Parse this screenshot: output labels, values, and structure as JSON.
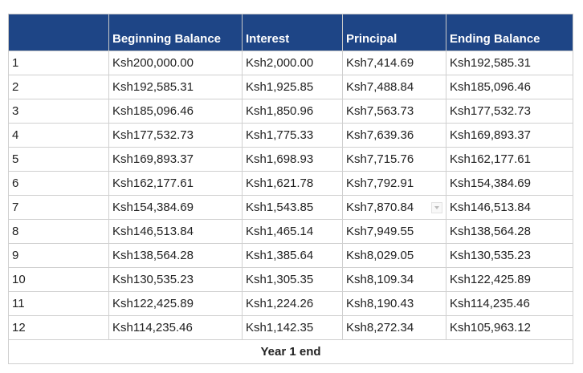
{
  "headers": [
    "",
    "Beginning Balance",
    "Interest",
    "Principal",
    "Ending Balance"
  ],
  "rows": [
    [
      "1",
      "Ksh200,000.00",
      "Ksh2,000.00",
      "Ksh7,414.69",
      "Ksh192,585.31"
    ],
    [
      "2",
      "Ksh192,585.31",
      "Ksh1,925.85",
      "Ksh7,488.84",
      "Ksh185,096.46"
    ],
    [
      "3",
      "Ksh185,096.46",
      "Ksh1,850.96",
      "Ksh7,563.73",
      "Ksh177,532.73"
    ],
    [
      "4",
      "Ksh177,532.73",
      "Ksh1,775.33",
      "Ksh7,639.36",
      "Ksh169,893.37"
    ],
    [
      "5",
      "Ksh169,893.37",
      "Ksh1,698.93",
      "Ksh7,715.76",
      "Ksh162,177.61"
    ],
    [
      "6",
      "Ksh162,177.61",
      "Ksh1,621.78",
      "Ksh7,792.91",
      "Ksh154,384.69"
    ],
    [
      "7",
      "Ksh154,384.69",
      "Ksh1,543.85",
      "Ksh7,870.84",
      "Ksh146,513.84"
    ],
    [
      "8",
      "Ksh146,513.84",
      "Ksh1,465.14",
      "Ksh7,949.55",
      "Ksh138,564.28"
    ],
    [
      "9",
      "Ksh138,564.28",
      "Ksh1,385.64",
      "Ksh8,029.05",
      "Ksh130,535.23"
    ],
    [
      "10",
      "Ksh130,535.23",
      "Ksh1,305.35",
      "Ksh8,109.34",
      "Ksh122,425.89"
    ],
    [
      "11",
      "Ksh122,425.89",
      "Ksh1,224.26",
      "Ksh8,190.43",
      "Ksh114,235.46"
    ],
    [
      "12",
      "Ksh114,235.46",
      "Ksh1,142.35",
      "Ksh8,272.34",
      "Ksh105,963.12"
    ]
  ],
  "footer": "Year 1 end",
  "colors": {
    "header_bg": "#1e4586",
    "header_text": "#ffffff"
  }
}
